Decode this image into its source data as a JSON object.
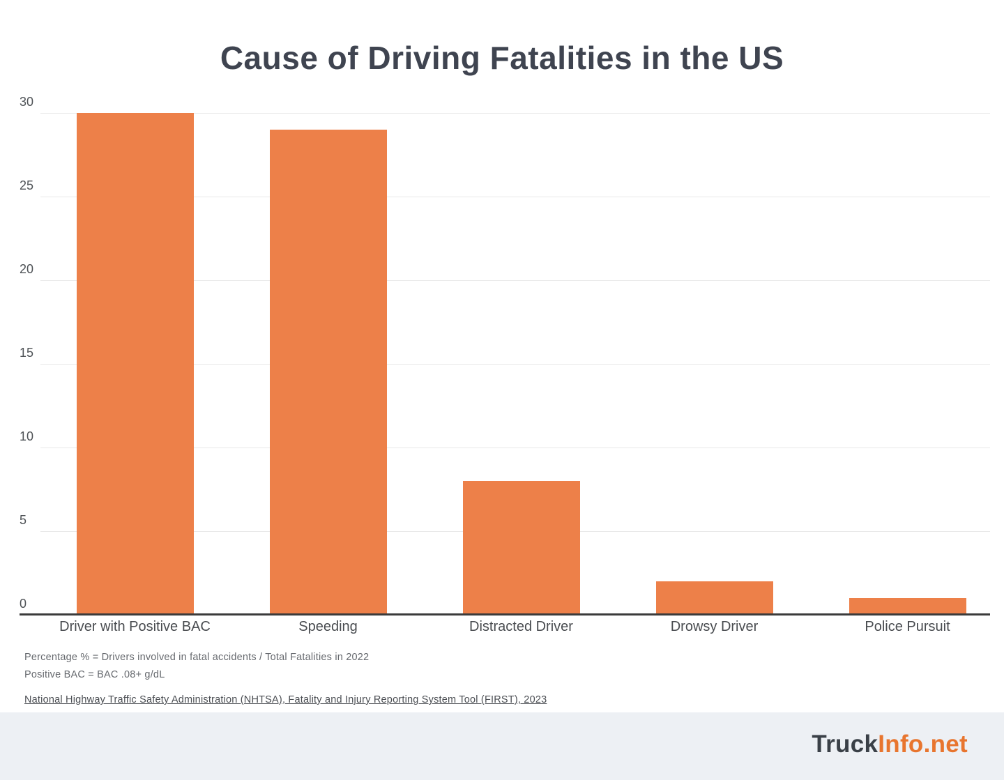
{
  "chart_data": {
    "type": "bar",
    "title": "Cause of Driving Fatalities in the US",
    "categories": [
      "Driver with Positive BAC",
      "Speeding",
      "Distracted Driver",
      "Drowsy Driver",
      "Police Pursuit"
    ],
    "values": [
      30,
      29,
      8,
      2,
      1
    ],
    "xlabel": "",
    "ylabel": "",
    "ylim": [
      0,
      30
    ],
    "yticks": [
      0,
      5,
      10,
      15,
      20,
      25,
      30
    ],
    "grid": true,
    "legend": "none",
    "bar_color": "#ED8049"
  },
  "footnotes": {
    "line1": "Percentage % = Drivers involved in fatal accidents / Total Fatalities in 2022",
    "line2": "Positive BAC = BAC .08+ g/dL",
    "source": "National Highway Traffic Safety Administration (NHTSA), Fatality and Injury Reporting System Tool (FIRST), 2023"
  },
  "footer": {
    "brand_prefix": "Truck",
    "brand_suffix": "Info.net",
    "brand_prefix_color": "#3a4047",
    "brand_suffix_color": "#e8752e",
    "band_color": "#edf0f4"
  }
}
